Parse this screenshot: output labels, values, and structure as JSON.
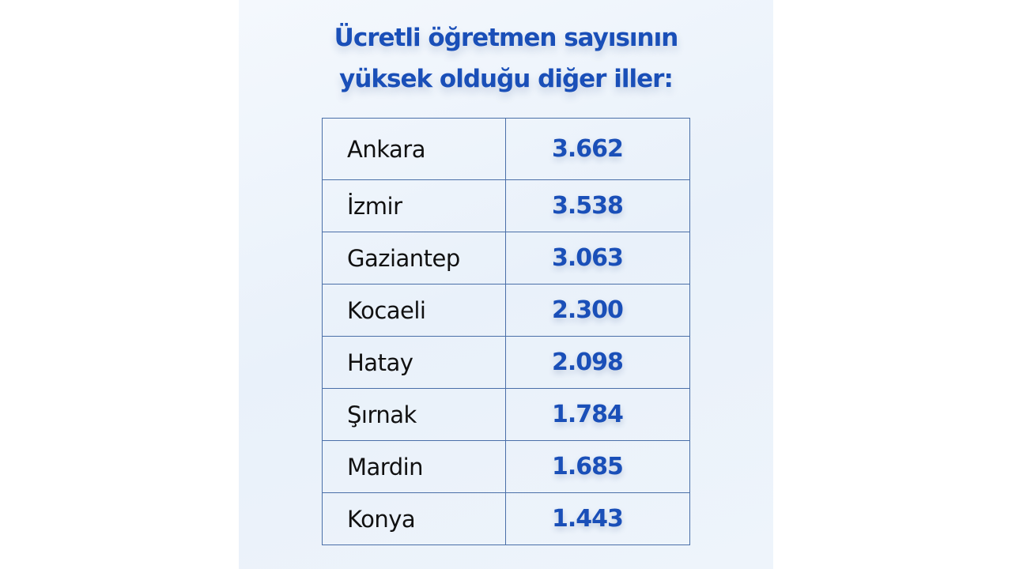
{
  "title_line1": "Ücretli öğretmen sayısının",
  "title_line2": "yüksek olduğu diğer iller:",
  "accent_color": "#1a4fb8",
  "rows": [
    {
      "city": "Ankara",
      "value": "3.662"
    },
    {
      "city": "İzmir",
      "value": "3.538"
    },
    {
      "city": "Gaziantep",
      "value": "3.063"
    },
    {
      "city": "Kocaeli",
      "value": "2.300"
    },
    {
      "city": "Hatay",
      "value": "2.098"
    },
    {
      "city": "Şırnak",
      "value": "1.784"
    },
    {
      "city": "Mardin",
      "value": "1.685"
    },
    {
      "city": "Konya",
      "value": "1.443"
    }
  ]
}
